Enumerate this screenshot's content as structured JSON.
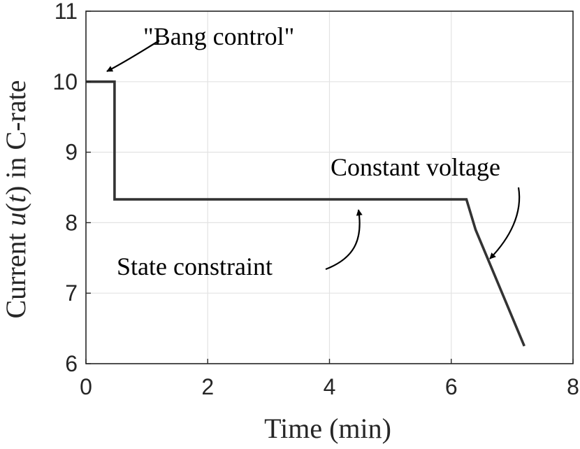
{
  "chart_data": {
    "type": "line",
    "xlabel": "Time (min)",
    "ylabel_parts": [
      "Current ",
      "u",
      "(",
      "t",
      ") in C-rate"
    ],
    "xlim": [
      0,
      8
    ],
    "ylim": [
      6,
      11
    ],
    "xticks": [
      0,
      2,
      4,
      6,
      8
    ],
    "yticks": [
      6,
      7,
      8,
      9,
      10,
      11
    ],
    "xtick_labels": [
      "0",
      "2",
      "4",
      "6",
      "8"
    ],
    "ytick_labels": [
      "6",
      "7",
      "8",
      "9",
      "10",
      "11"
    ],
    "grid": true,
    "series": [
      {
        "x": [
          0,
          0.47,
          0.47,
          6.25,
          6.4,
          7.2
        ],
        "y": [
          10,
          10,
          8.33,
          8.33,
          7.9,
          6.25
        ],
        "color": "#333333"
      }
    ],
    "annotations": [
      {
        "text": "\"Bang control\"",
        "target": [
          0.3,
          10.14
        ]
      },
      {
        "text": "State constraint",
        "target": [
          4.5,
          8.17
        ]
      },
      {
        "text": "Constant voltage",
        "target": [
          6.57,
          7.5
        ]
      }
    ]
  }
}
